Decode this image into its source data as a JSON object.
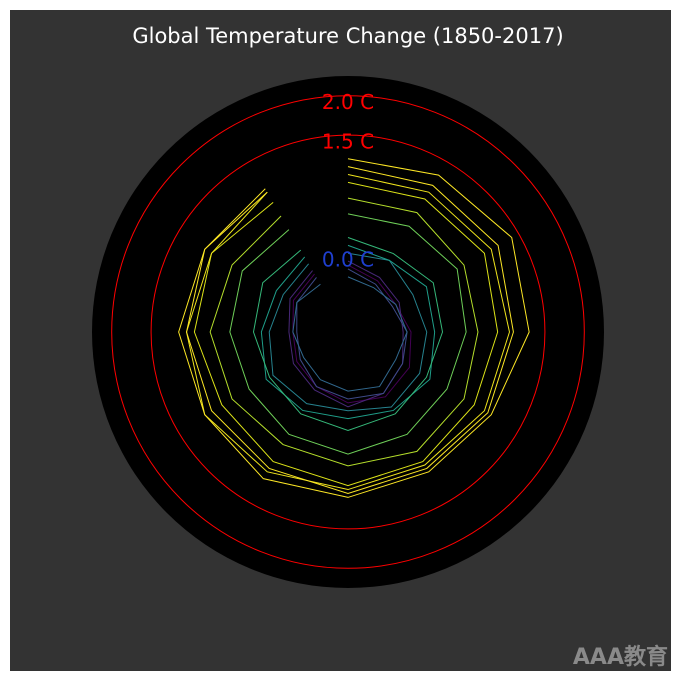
{
  "chart_data": {
    "type": "polar-line",
    "title": "Global Temperature Change (1850-2017)",
    "rlim": [
      -1,
      2.25
    ],
    "rings": [
      {
        "value": 0.0,
        "label": "0.0 C",
        "color": "#1f3fd0",
        "circle": false
      },
      {
        "value": 1.5,
        "label": "1.5 C",
        "color": "#ff0000",
        "circle": true
      },
      {
        "value": 2.0,
        "label": "2.0 C",
        "color": "#ff0000",
        "circle": true
      }
    ],
    "series": [
      {
        "color": "#440154",
        "values": [
          -0.15,
          -0.25,
          -0.3,
          -0.2,
          -0.1,
          -0.05,
          -0.1,
          -0.2,
          -0.25,
          -0.3,
          -0.2,
          -0.15
        ]
      },
      {
        "color": "#482878",
        "values": [
          -0.1,
          -0.2,
          -0.25,
          -0.3,
          -0.2,
          -0.1,
          -0.05,
          -0.15,
          -0.2,
          -0.25,
          -0.15,
          -0.1
        ]
      },
      {
        "color": "#3e4a89",
        "values": [
          -0.2,
          -0.3,
          -0.35,
          -0.25,
          -0.2,
          -0.1,
          -0.15,
          -0.2,
          -0.3,
          -0.35,
          -0.25,
          -0.2
        ]
      },
      {
        "color": "#31688e",
        "values": [
          -0.3,
          -0.35,
          -0.3,
          -0.25,
          -0.3,
          -0.2,
          -0.25,
          -0.3,
          -0.35,
          -0.3,
          -0.25,
          -0.3
        ]
      },
      {
        "color": "#26828e",
        "values": [
          0.0,
          0.05,
          -0.05,
          0.0,
          0.05,
          0.1,
          0.0,
          0.05,
          0.1,
          0.0,
          -0.05,
          0.0
        ]
      },
      {
        "color": "#1f9e89",
        "values": [
          0.1,
          0.05,
          0.15,
          0.1,
          0.2,
          0.15,
          0.1,
          0.15,
          0.2,
          0.1,
          0.05,
          0.1
        ]
      },
      {
        "color": "#35b779",
        "values": [
          0.2,
          0.15,
          0.25,
          0.2,
          0.15,
          0.2,
          0.25,
          0.2,
          0.15,
          0.2,
          0.25,
          0.2
        ]
      },
      {
        "color": "#6ece58",
        "values": [
          0.5,
          0.55,
          0.6,
          0.5,
          0.45,
          0.5,
          0.55,
          0.5,
          0.45,
          0.5,
          0.55,
          0.5
        ]
      },
      {
        "color": "#b5de2b",
        "values": [
          0.7,
          0.75,
          0.7,
          0.65,
          0.7,
          0.75,
          0.7,
          0.65,
          0.7,
          0.75,
          0.7,
          0.7
        ]
      },
      {
        "color": "#dde318",
        "values": [
          0.9,
          0.95,
          1.0,
          0.9,
          0.85,
          0.9,
          0.95,
          0.9,
          0.85,
          0.95,
          1.0,
          0.9
        ]
      },
      {
        "color": "#f0e51c",
        "values": [
          1.0,
          1.05,
          1.1,
          1.05,
          1.0,
          0.95,
          1.0,
          1.05,
          1.1,
          1.05,
          1.0,
          1.05
        ]
      },
      {
        "color": "#fde725",
        "values": [
          1.2,
          1.3,
          1.4,
          1.3,
          1.1,
          1.05,
          1.1,
          1.15,
          1.1,
          1.15,
          1.1,
          1.1
        ]
      },
      {
        "color": "#fde725",
        "values": [
          1.1,
          1.15,
          1.2,
          1.1,
          1.05,
          1.0,
          1.05,
          1.0,
          1.0,
          1.05,
          1.1,
          1.05
        ]
      }
    ],
    "watermark": "AAA教育"
  }
}
